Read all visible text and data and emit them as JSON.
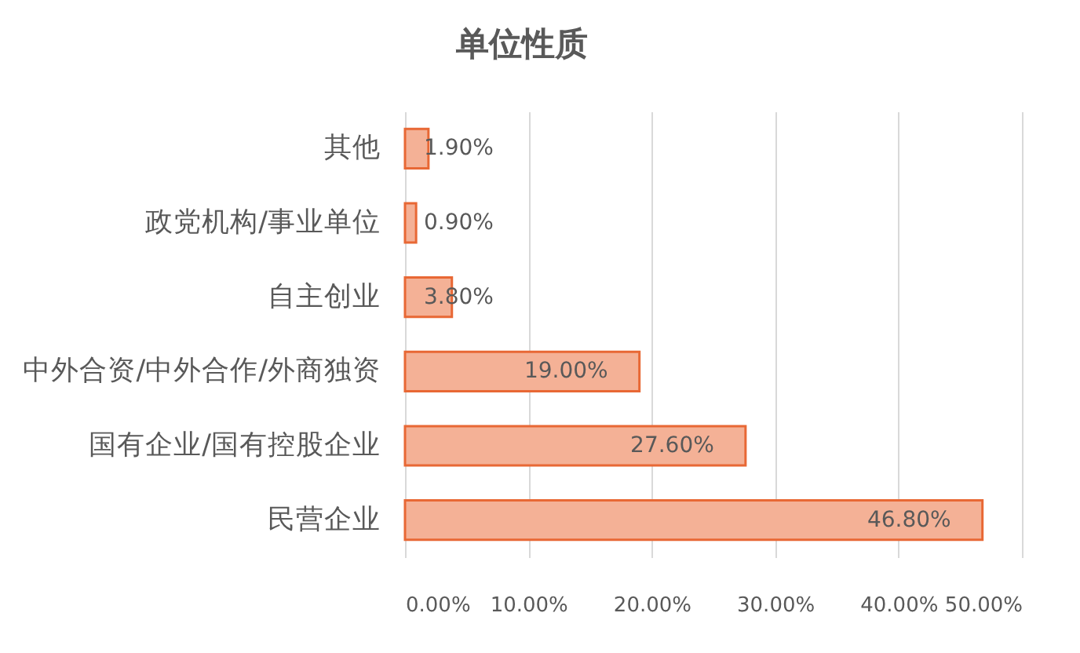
{
  "chart_data": {
    "type": "bar",
    "orientation": "horizontal",
    "title": "单位性质",
    "categories": [
      "其他",
      "政党机构/事业单位",
      "自主创业",
      "中外合资/中外合作/外商独资",
      "国有企业/国有控股企业",
      "民营企业"
    ],
    "values": [
      1.9,
      0.9,
      3.8,
      19.0,
      27.6,
      46.8
    ],
    "color": "#f4b196",
    "value_labels": [
      "1.90%",
      "0.90%",
      "3.80%",
      "19.00%",
      "27.60%",
      "46.80%"
    ],
    "xlim": [
      0,
      50
    ],
    "xticks": [
      {
        "value": 0,
        "label": "0.00%"
      },
      {
        "value": 10,
        "label": "10.00%"
      },
      {
        "value": 20,
        "label": "20.00%"
      },
      {
        "value": 30,
        "label": "30.00%"
      },
      {
        "value": 40,
        "label": "40.00%"
      },
      {
        "value": 50,
        "label": "50.00%"
      }
    ],
    "grid": "x"
  }
}
